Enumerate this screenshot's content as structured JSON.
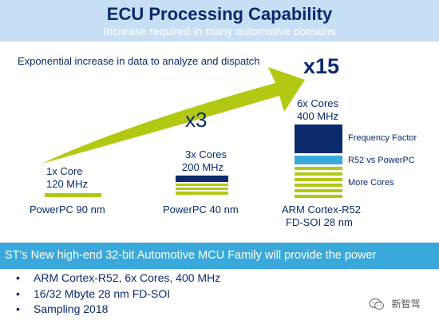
{
  "slide": {
    "title": "ECU Processing Capability",
    "subtitle": "Increase required in many automotive domains",
    "intro": "Exponential increase in data to analyze and dispatch",
    "multipliers": {
      "big": "x15",
      "small": "x3"
    },
    "columns": [
      {
        "cores": "1x Core",
        "freq": "120 MHz",
        "label_line1": "PowerPC 90 nm",
        "label_line2": ""
      },
      {
        "cores": "3x Cores",
        "freq": "200 MHz",
        "label_line1": "PowerPC 40 nm",
        "label_line2": ""
      },
      {
        "cores": "6x Cores",
        "freq": "400 MHz",
        "label_line1": "ARM Cortex-R52",
        "label_line2": "FD-SOI 28 nm"
      }
    ],
    "legend": {
      "frequency": "Frequency Factor",
      "r52": "R52 vs PowerPC",
      "cores": "More Cores"
    },
    "banner": "ST's New high-end 32-bit Automotive MCU Family will provide the power",
    "bullets": [
      "ARM Cortex-R52, 6x Cores, 400 MHz",
      "16/32 Mbyte 28 nm FD-SOI",
      "Sampling 2018"
    ],
    "watermark": "新智驾",
    "colors": {
      "navy": "#0a2a6c",
      "lime": "#b3c812",
      "sky": "#39a9dc",
      "title_bg": "#c7dff4"
    }
  }
}
